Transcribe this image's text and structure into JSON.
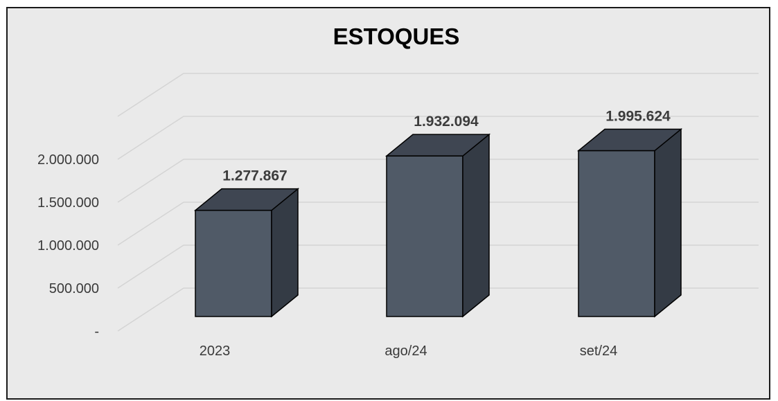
{
  "chart_data": {
    "type": "bar",
    "title": "ESTOQUES",
    "categories": [
      "2023",
      "ago/24",
      "set/24"
    ],
    "series": [
      {
        "values": [
          1277867,
          1932094,
          1995624
        ]
      }
    ],
    "data_labels": [
      "1.277.867",
      "1.932.094",
      "1.995.624"
    ],
    "y_ticks": [
      {
        "value": 0,
        "label": "-"
      },
      {
        "value": 500000,
        "label": "500.000"
      },
      {
        "value": 1000000,
        "label": "1.000.000"
      },
      {
        "value": 1500000,
        "label": "1.500.000"
      },
      {
        "value": 2000000,
        "label": "2.000.000"
      }
    ],
    "ylim": [
      0,
      2500000
    ],
    "grid": true,
    "three_d": true,
    "colors": {
      "front": "#505a67",
      "side": "#343b45",
      "top": "#3f4652",
      "outline": "#000000",
      "background": "#eaeaea",
      "grid": "#d4d4d4"
    }
  }
}
